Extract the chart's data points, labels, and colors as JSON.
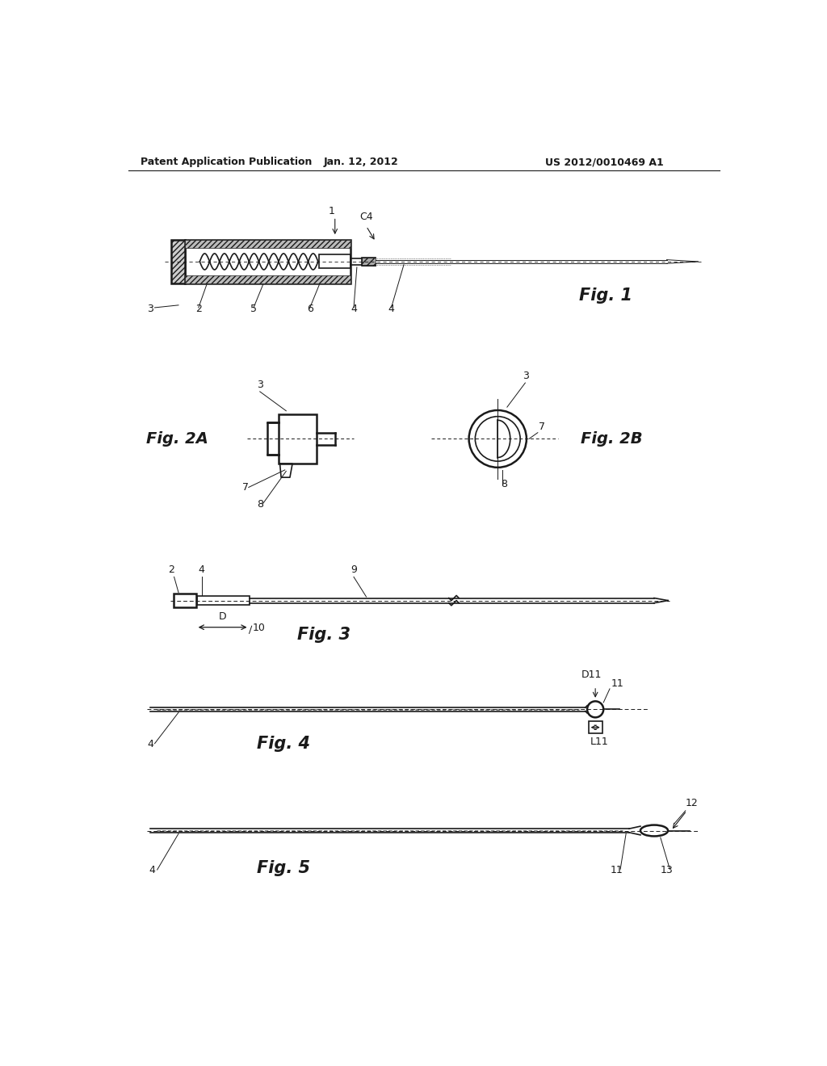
{
  "bg_color": "#ffffff",
  "header_left": "Patent Application Publication",
  "header_center": "Jan. 12, 2012",
  "header_right": "US 2012/0010469 A1",
  "fig1_label": "Fig. 1",
  "fig2a_label": "Fig. 2A",
  "fig2b_label": "Fig. 2B",
  "fig3_label": "Fig. 3",
  "fig4_label": "Fig. 4",
  "fig5_label": "Fig. 5",
  "line_color": "#1a1a1a",
  "hatch_color": "#444444"
}
